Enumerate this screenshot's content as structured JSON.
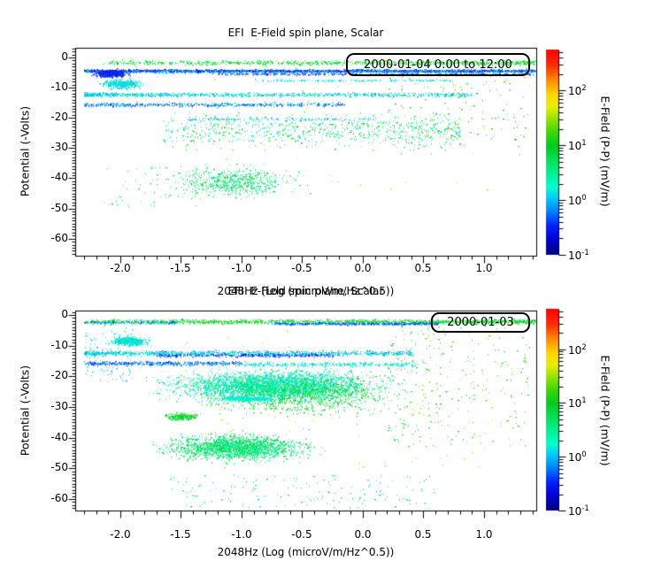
{
  "figure": {
    "background": "#ffffff",
    "axis_color": "#000000"
  },
  "colorbar": {
    "label": "E-Field (P-P) (mV/m)",
    "tick_exponents": [
      -1,
      0,
      1,
      2
    ],
    "log_range": [
      -1,
      2.75
    ]
  },
  "colormap": [
    [
      0.0,
      "#000080"
    ],
    [
      0.07,
      "#0000d0"
    ],
    [
      0.14,
      "#0020ff"
    ],
    [
      0.21,
      "#0080ff"
    ],
    [
      0.27,
      "#00c4ff"
    ],
    [
      0.33,
      "#00ffd0"
    ],
    [
      0.4,
      "#00f090"
    ],
    [
      0.47,
      "#00e050"
    ],
    [
      0.53,
      "#00cc20"
    ],
    [
      0.6,
      "#40d800"
    ],
    [
      0.66,
      "#90e400"
    ],
    [
      0.72,
      "#e8ee00"
    ],
    [
      0.78,
      "#ffd800"
    ],
    [
      0.85,
      "#ff8c00"
    ],
    [
      0.92,
      "#ff3000"
    ],
    [
      1.0,
      "#ff0000"
    ]
  ],
  "chart_data": {
    "type": "scatter",
    "panels": [
      {
        "title": "EFI  E-Field spin plane, Scalar",
        "legend": "2000-01-04 0:00 to 12:00",
        "xlabel": "2048Hz (Log (microV/m/Hz^0.5))",
        "ylabel": "Potential (-Volts)",
        "x_range": [
          -2.372,
          1.431
        ],
        "y_range": [
          3.2,
          -65.65
        ],
        "x_ticks": [
          -2.0,
          -1.5,
          -1.0,
          -0.5,
          0.0,
          0.5,
          1.0
        ],
        "x_tick_labels": [
          "-2.0",
          "-1.5",
          "-1.0",
          "-0.5",
          "0.0",
          "0.5",
          "1.0"
        ],
        "x_minor_step": 0.1,
        "y_ticks": [
          0,
          -10,
          -20,
          -30,
          -40,
          -50,
          -60
        ],
        "y_tick_labels": [
          "0",
          "-10",
          "-20",
          "-30",
          "-40",
          "-50",
          "-60"
        ],
        "y_minor_step": 1,
        "clusters": [
          {
            "name": "top-green-band",
            "n": 900,
            "xdist": "uniform",
            "x": [
              -2.15,
              1.43
            ],
            "bias": 0.3,
            "ydist": "gauss",
            "y": [
              -1.6,
              1.2
            ],
            "logv": [
              0.45,
              1.35
            ]
          },
          {
            "name": "blue-band-dense",
            "n": 2000,
            "xdist": "uniform",
            "x": [
              -2.3,
              1.43
            ],
            "bias": 0,
            "ydist": "gauss",
            "y": [
              -4.3,
              0.7
            ],
            "logv": [
              -0.75,
              -0.1
            ]
          },
          {
            "name": "blue-band-light",
            "n": 450,
            "xdist": "uniform",
            "x": [
              -2.3,
              1.43
            ],
            "bias": 0,
            "ydist": "gauss",
            "y": [
              -4.5,
              1.1
            ],
            "logv": [
              -0.35,
              0.3
            ]
          },
          {
            "name": "blue-band-second",
            "n": 350,
            "xdist": "uniform",
            "x": [
              -1.2,
              1.43
            ],
            "bias": 0,
            "ydist": "gauss",
            "y": [
              -5.4,
              0.5
            ],
            "logv": [
              -0.6,
              -0.15
            ]
          },
          {
            "name": "left-dark-blob",
            "n": 650,
            "xdist": "gauss",
            "x": [
              -2.08,
              0.2
            ],
            "ydist": "gauss",
            "y": [
              -5.2,
              1.8
            ],
            "logv": [
              -0.8,
              -0.2
            ]
          },
          {
            "name": "left-cyan-spray",
            "n": 380,
            "xdist": "gauss",
            "x": [
              -2.0,
              0.25
            ],
            "ydist": "gauss",
            "y": [
              -8.6,
              2.4
            ],
            "logv": [
              -0.15,
              0.45
            ]
          },
          {
            "name": "cyan-streak-7",
            "n": 150,
            "xdist": "uniform",
            "x": [
              -0.9,
              0.75
            ],
            "bias": 0,
            "ydist": "gauss",
            "y": [
              -7.5,
              0.5
            ],
            "logv": [
              -0.1,
              0.35
            ]
          },
          {
            "name": "cyan-band-12",
            "n": 950,
            "xdist": "uniform",
            "x": [
              -2.3,
              0.9
            ],
            "bias": -0.45,
            "ydist": "gauss",
            "y": [
              -12.2,
              1.0
            ],
            "logv": [
              -0.25,
              0.5
            ]
          },
          {
            "name": "blue-band-15",
            "n": 520,
            "xdist": "uniform",
            "x": [
              -2.3,
              -0.15
            ],
            "bias": -0.25,
            "ydist": "gauss",
            "y": [
              -15.5,
              1.0
            ],
            "logv": [
              -0.6,
              0.25
            ]
          },
          {
            "name": "streak-20",
            "n": 130,
            "xdist": "uniform",
            "x": [
              -1.45,
              0.1
            ],
            "bias": 0,
            "ydist": "gauss",
            "y": [
              -20.3,
              0.8
            ],
            "logv": [
              -0.3,
              0.3
            ]
          },
          {
            "name": "mid-cloud",
            "n": 750,
            "xdist": "uniform",
            "x": [
              -1.65,
              0.8
            ],
            "bias": 0.15,
            "ydist": "gauss",
            "y": [
              -24,
              8.5
            ],
            "logv": [
              0.05,
              1.2
            ]
          },
          {
            "name": "low-cloud",
            "n": 620,
            "xdist": "gauss",
            "x": [
              -1.05,
              0.7
            ],
            "ydist": "gauss",
            "y": [
              -41,
              7.5
            ],
            "logv": [
              0.2,
              1.15
            ]
          },
          {
            "name": "right-sparse-green",
            "n": 150,
            "xdist": "uniform",
            "x": [
              0.2,
              1.35
            ],
            "bias": 0,
            "ydist": "uniform",
            "y": [
              -32,
              -4
            ],
            "logv": [
              0.6,
              1.4
            ]
          },
          {
            "name": "warm-outliers",
            "n": 65,
            "xdist": "uniform",
            "x": [
              -1.4,
              1.38
            ],
            "bias": 0,
            "ydist": "uniform",
            "y": [
              -46,
              -3
            ],
            "logv": [
              1.5,
              2.3
            ]
          },
          {
            "name": "left-low-sparse",
            "n": 60,
            "xdist": "uniform",
            "x": [
              -2.15,
              -1.35
            ],
            "bias": 0,
            "ydist": "uniform",
            "y": [
              -50,
              -36
            ],
            "logv": [
              0.3,
              1.0
            ]
          }
        ]
      },
      {
        "title": "EFI  E-Field spin plane, Scalar",
        "legend": "2000-01-03",
        "xlabel": "2048Hz (Log (microV/m/Hz^0.5))",
        "ylabel": "Potential (-Volts)",
        "x_range": [
          -2.372,
          1.431
        ],
        "y_range": [
          1.44,
          -63.74
        ],
        "x_ticks": [
          -2.0,
          -1.5,
          -1.0,
          -0.5,
          0.0,
          0.5,
          1.0
        ],
        "x_tick_labels": [
          "-2.0",
          "-1.5",
          "-1.0",
          "-0.5",
          "0.0",
          "0.5",
          "1.0"
        ],
        "x_minor_step": 0.1,
        "y_ticks": [
          0,
          -10,
          -20,
          -30,
          -40,
          -50,
          -60
        ],
        "y_tick_labels": [
          "0",
          "-10",
          "-20",
          "-30",
          "-40",
          "-50",
          "-60"
        ],
        "y_minor_step": 1,
        "clusters": [
          {
            "name": "top-green-band",
            "n": 1500,
            "xdist": "uniform",
            "x": [
              -2.3,
              1.43
            ],
            "bias": 0.25,
            "ydist": "gauss",
            "y": [
              -2.0,
              1.1
            ],
            "logv": [
              0.55,
              1.35
            ]
          },
          {
            "name": "top-blue-seg",
            "n": 430,
            "xdist": "uniform",
            "x": [
              -0.75,
              0.62
            ],
            "bias": 0,
            "ydist": "gauss",
            "y": [
              -2.7,
              0.6
            ],
            "logv": [
              -0.6,
              0.0
            ]
          },
          {
            "name": "top-blue-left",
            "n": 140,
            "xdist": "uniform",
            "x": [
              -2.3,
              -1.55
            ],
            "bias": 0,
            "ydist": "gauss",
            "y": [
              -2.3,
              0.8
            ],
            "logv": [
              -0.5,
              0.1
            ]
          },
          {
            "name": "cyan-blob-left",
            "n": 560,
            "xdist": "gauss",
            "x": [
              -1.93,
              0.22
            ],
            "ydist": "gauss",
            "y": [
              -8.4,
              2.0
            ],
            "logv": [
              -0.1,
              0.5
            ]
          },
          {
            "name": "band-12",
            "n": 1000,
            "xdist": "uniform",
            "x": [
              -2.3,
              0.4
            ],
            "bias": -0.2,
            "ydist": "gauss",
            "y": [
              -12.3,
              1.3
            ],
            "logv": [
              -0.3,
              0.5
            ]
          },
          {
            "name": "blue-seg-13",
            "n": 360,
            "xdist": "uniform",
            "x": [
              -1.7,
              -0.25
            ],
            "bias": 0,
            "ydist": "gauss",
            "y": [
              -13.0,
              0.9
            ],
            "logv": [
              -0.7,
              -0.1
            ]
          },
          {
            "name": "blue-band-15",
            "n": 430,
            "xdist": "uniform",
            "x": [
              -2.3,
              -1.0
            ],
            "bias": 0,
            "ydist": "gauss",
            "y": [
              -15.6,
              1.1
            ],
            "logv": [
              -0.6,
              0.1
            ]
          },
          {
            "name": "cyan-band-16",
            "n": 330,
            "xdist": "uniform",
            "x": [
              -1.0,
              0.45
            ],
            "bias": 0,
            "ydist": "gauss",
            "y": [
              -16.0,
              1.2
            ],
            "logv": [
              -0.1,
              0.4
            ]
          },
          {
            "name": "big-cyan-cloud",
            "n": 3600,
            "xdist": "gauss",
            "x": [
              -0.75,
              1.25
            ],
            "ydist": "gauss",
            "y": [
              -23,
              7.5
            ],
            "logv": [
              0.0,
              0.75
            ]
          },
          {
            "name": "cloud-green-mix",
            "n": 950,
            "xdist": "gauss",
            "x": [
              -0.5,
              1.15
            ],
            "ydist": "gauss",
            "y": [
              -26,
              9.5
            ],
            "logv": [
              0.6,
              1.25
            ]
          },
          {
            "name": "cyan-streak-27",
            "n": 380,
            "xdist": "gauss",
            "x": [
              -0.95,
              0.38
            ],
            "ydist": "gauss",
            "y": [
              -27.2,
              1.2
            ],
            "logv": [
              0.0,
              0.4
            ]
          },
          {
            "name": "green-blob-33",
            "n": 230,
            "xdist": "gauss",
            "x": [
              -1.5,
              0.2
            ],
            "ydist": "gauss",
            "y": [
              -33,
              1.8
            ],
            "logv": [
              0.7,
              1.2
            ]
          },
          {
            "name": "low-cloud",
            "n": 2000,
            "xdist": "gauss",
            "x": [
              -1.05,
              0.85
            ],
            "ydist": "gauss",
            "y": [
              -43,
              6.5
            ],
            "logv": [
              0.25,
              1.05
            ]
          },
          {
            "name": "bottom-sparse",
            "n": 160,
            "xdist": "uniform",
            "x": [
              -1.6,
              0.6
            ],
            "bias": 0,
            "ydist": "uniform",
            "y": [
              -63,
              -52
            ],
            "logv": [
              0.3,
              1.0
            ]
          },
          {
            "name": "right-scatter",
            "n": 280,
            "xdist": "uniform",
            "x": [
              0.2,
              1.38
            ],
            "bias": -0.35,
            "ydist": "uniform",
            "y": [
              -43,
              -3
            ],
            "logv": [
              0.6,
              1.4
            ]
          },
          {
            "name": "warm-outliers",
            "n": 130,
            "xdist": "uniform",
            "x": [
              -1.5,
              1.4
            ],
            "bias": 0,
            "ydist": "uniform",
            "y": [
              -50,
              -4
            ],
            "logv": [
              1.5,
              2.3
            ]
          },
          {
            "name": "left-edge-sparse",
            "n": 110,
            "xdist": "uniform",
            "x": [
              -2.3,
              -1.9
            ],
            "bias": 0,
            "ydist": "uniform",
            "y": [
              -22,
              -3
            ],
            "logv": [
              -0.2,
              0.4
            ]
          }
        ]
      }
    ]
  },
  "panels": [
    {
      "title": "EFI  E-Field spin plane, Scalar",
      "legend": "2000-01-04 0:00 to 12:00",
      "xlabel": "2048Hz (Log (microV/m/Hz^0.5))",
      "ylabel": "Potential (-Volts)"
    },
    {
      "title": "EFI  E-Field spin plane, Scalar",
      "legend": "2000-01-03",
      "xlabel": "2048Hz (Log (microV/m/Hz^0.5))",
      "ylabel": "Potential (-Volts)"
    }
  ]
}
